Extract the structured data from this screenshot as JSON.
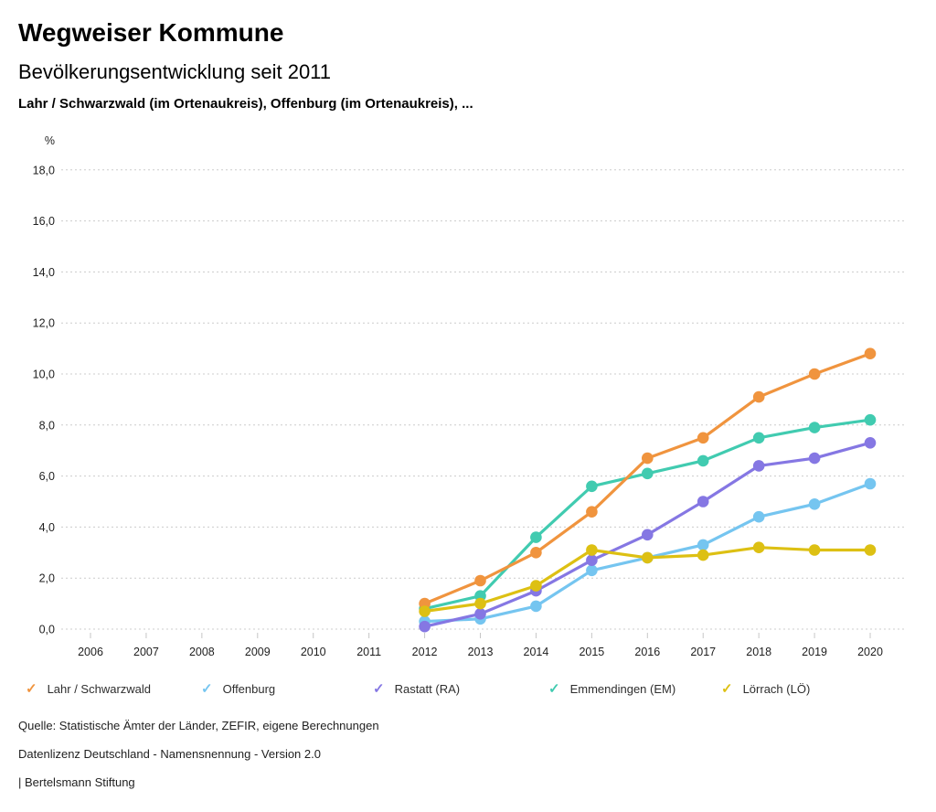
{
  "header": {
    "app_title": "Wegweiser Kommune",
    "chart_title": "Bevölkerungsentwicklung seit 2011",
    "chart_subjects": "Lahr / Schwarzwald (im Ortenaukreis), Offenburg (im Ortenaukreis), ..."
  },
  "chart_data": {
    "type": "line",
    "title": "Bevölkerungsentwicklung seit 2011",
    "unit_label": "%",
    "ylabel": "%",
    "xlabel": "",
    "ylim": [
      0,
      18
    ],
    "y_tick_step": 2,
    "y_tick_labels": [
      "0,0",
      "2,0",
      "4,0",
      "6,0",
      "8,0",
      "10,0",
      "12,0",
      "14,0",
      "16,0",
      "18,0"
    ],
    "x_axis_years": [
      2006,
      2007,
      2008,
      2009,
      2010,
      2011,
      2012,
      2013,
      2014,
      2015,
      2016,
      2017,
      2018,
      2019,
      2020
    ],
    "x": [
      2012,
      2013,
      2014,
      2015,
      2016,
      2017,
      2018,
      2019,
      2020
    ],
    "grid": "horizontal-dotted",
    "legend_position": "bottom",
    "legend_check_glyph": "✓",
    "grid_color": "#cccccc",
    "axis_text_color": "#1f1f1f",
    "series": [
      {
        "name": "Lahr / Schwarzwald",
        "color": "#f0943e",
        "values": [
          1.0,
          1.9,
          3.0,
          4.6,
          6.7,
          7.5,
          9.1,
          10.0,
          10.8
        ]
      },
      {
        "name": "Offenburg",
        "color": "#75c5f0",
        "values": [
          0.3,
          0.4,
          0.9,
          2.3,
          2.8,
          3.3,
          4.4,
          4.9,
          5.7
        ]
      },
      {
        "name": "Rastatt (RA)",
        "color": "#8577e3",
        "values": [
          0.1,
          0.6,
          1.5,
          2.7,
          3.7,
          5.0,
          6.4,
          6.7,
          7.3
        ]
      },
      {
        "name": "Emmendingen (EM)",
        "color": "#41cbb0",
        "values": [
          0.8,
          1.3,
          3.6,
          5.6,
          6.1,
          6.6,
          7.5,
          7.9,
          8.2
        ]
      },
      {
        "name": "Lörrach (LÖ)",
        "color": "#ddc013",
        "values": [
          0.7,
          1.0,
          1.7,
          3.1,
          2.8,
          2.9,
          3.2,
          3.1,
          3.1
        ]
      }
    ]
  },
  "footer": {
    "source": "Quelle: Statistische Ämter der Länder, ZEFIR, eigene Berechnungen",
    "license": "Datenlizenz Deutschland - Namensnennung - Version 2.0",
    "attribution": "| Bertelsmann Stiftung"
  }
}
